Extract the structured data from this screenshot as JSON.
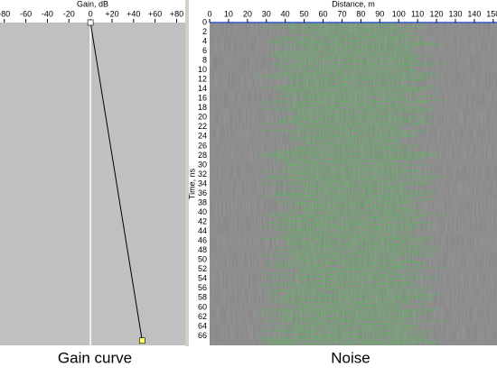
{
  "chart_data": [
    {
      "type": "line",
      "title": "Gain curve",
      "xlabel": "Gain, dB",
      "xlim": [
        -84,
        88
      ],
      "xticks": [
        -80,
        -60,
        -40,
        -20,
        0,
        {
          "value": 20,
          "label": "+20"
        },
        {
          "value": 40,
          "label": "+40"
        },
        {
          "value": 60,
          "label": "+60"
        },
        {
          "value": 80,
          "label": "+80"
        }
      ],
      "ylim": [
        0,
        68
      ],
      "series": [
        {
          "color": "#000000",
          "marker_color": "#ffff66",
          "values": [
            0,
            48
          ],
          "time": [
            0,
            67
          ]
        }
      ]
    },
    {
      "type": "radargram",
      "title": "Noise",
      "xlabel": "Distance, m",
      "ylabel": "Time, ns",
      "xlim": [
        0,
        152
      ],
      "ylim": [
        0,
        68
      ],
      "xticks": [
        0,
        10,
        20,
        30,
        40,
        50,
        60,
        70,
        80,
        90,
        100,
        110,
        120,
        130,
        140,
        150
      ],
      "yticks": [
        0,
        2,
        4,
        6,
        8,
        10,
        12,
        14,
        16,
        18,
        20,
        22,
        24,
        26,
        28,
        30,
        32,
        34,
        36,
        38,
        40,
        42,
        44,
        46,
        48,
        50,
        52,
        54,
        56,
        58,
        60,
        62,
        64,
        66
      ],
      "background": "#808080",
      "trace_color": "#33dd33"
    }
  ]
}
